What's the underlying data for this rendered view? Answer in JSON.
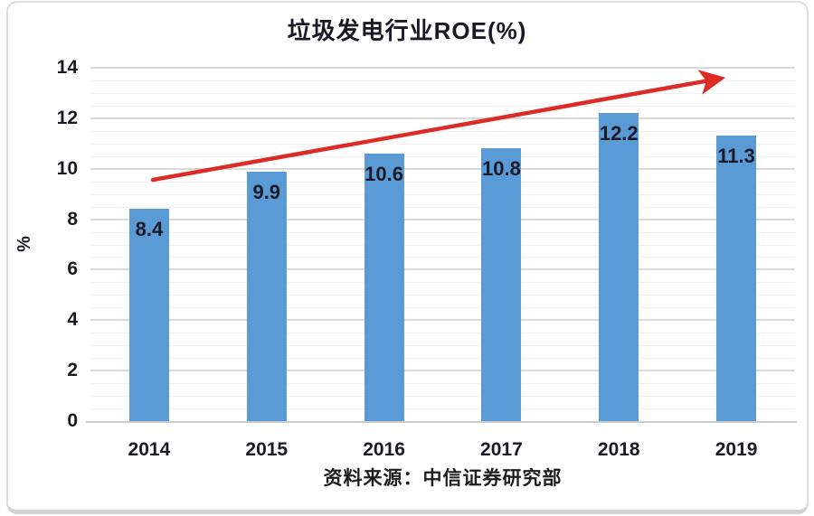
{
  "source_note": "资料来源：中信证券研究部",
  "colors": {
    "bar": "#5B9BD5",
    "arrow": "#DD2B25",
    "text": "#1A1A26",
    "grid_major": "#D9D9D9",
    "grid_minor": "#F1EFF1",
    "axis_line": "#CCCCCC",
    "card_border": "#DDDDDD"
  },
  "chart_data": {
    "type": "bar",
    "title": "垃圾发电行业ROE(%)",
    "categories": [
      "2014",
      "2015",
      "2016",
      "2017",
      "2018",
      "2019"
    ],
    "values": [
      8.4,
      9.9,
      10.6,
      10.8,
      12.2,
      11.3
    ],
    "xlabel": "",
    "ylabel": "%",
    "ylim": [
      0,
      14
    ],
    "ytick_step": 2,
    "minor_grid_step": 0.5,
    "grid": "on",
    "legend": "none",
    "data_labels": "inside-top",
    "trend_arrow": {
      "from": {
        "x_frac": 0.0886,
        "value": 9.56
      },
      "to": {
        "x_frac": 0.9114,
        "value": 13.68
      }
    }
  }
}
